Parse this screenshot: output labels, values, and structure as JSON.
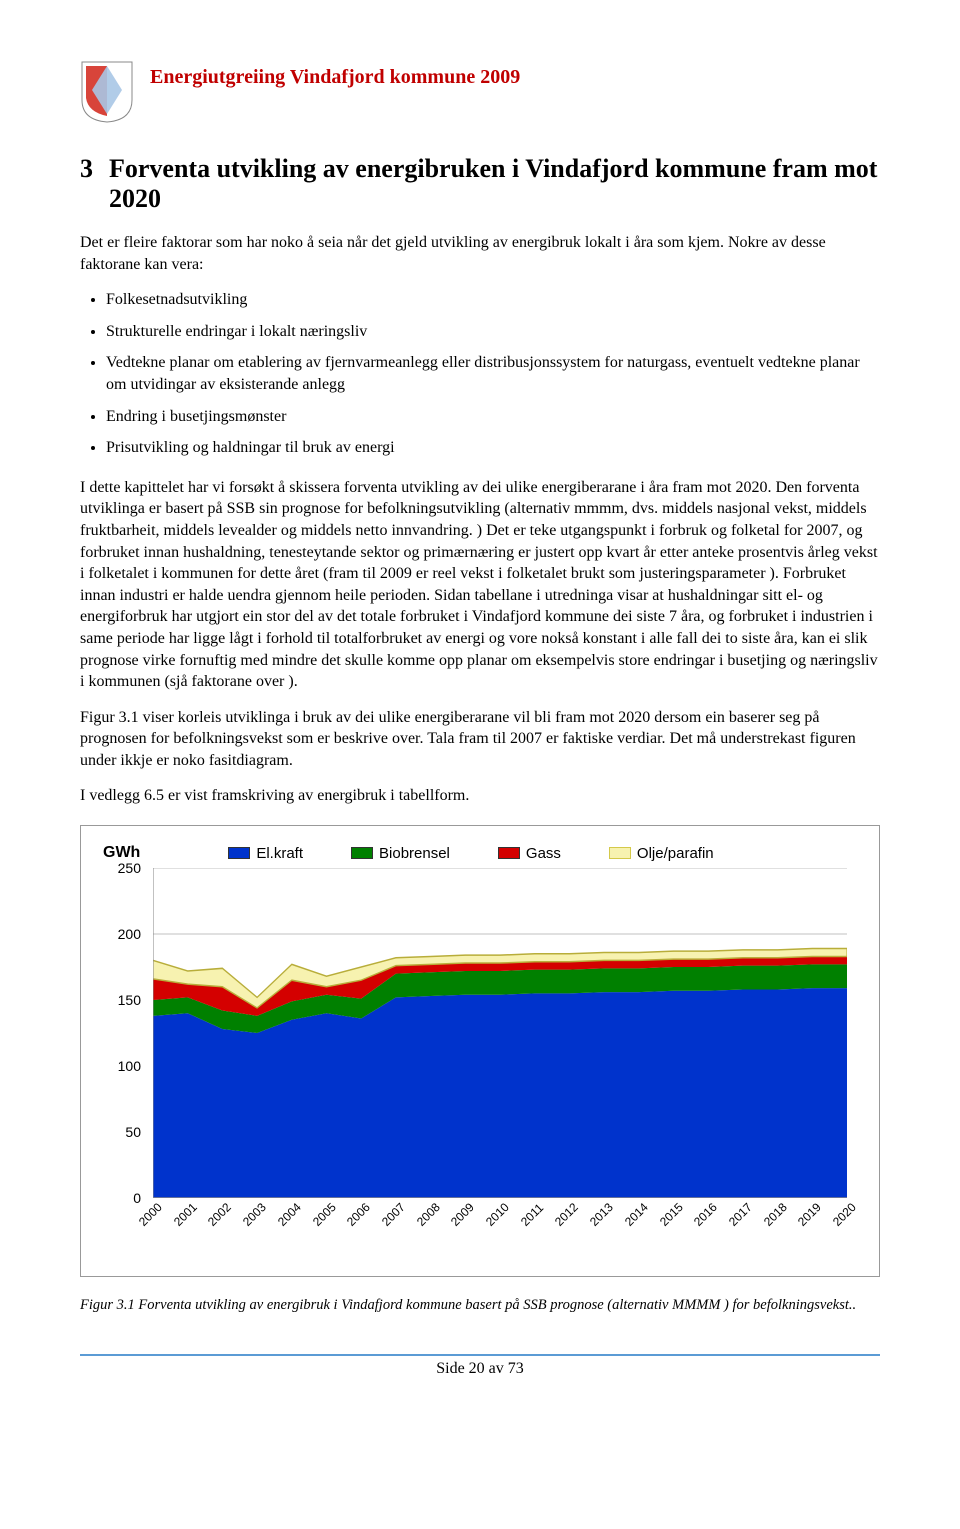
{
  "header": {
    "doc_title": "Energiutgreiing Vindafjord kommune 2009"
  },
  "section": {
    "number": "3",
    "title_line1": "Forventa utvikling av energibruken i Vindafjord kommune fram mot",
    "title_line2": "2020"
  },
  "intro": "Det er fleire faktorar som har noko å seia når det gjeld utvikling av energibruk lokalt i åra som kjem. Nokre av desse faktorane kan vera:",
  "bullets": [
    "Folkesetnadsutvikling",
    "Strukturelle endringar i lokalt næringsliv",
    "Vedtekne planar om etablering av fjernvarmeanlegg eller distribusjonssystem for naturgass, eventuelt vedtekne planar om utvidingar av eksisterande anlegg",
    "Endring i busetjingsmønster",
    "Prisutvikling og haldningar til bruk av energi"
  ],
  "p1": "I dette kapittelet har vi forsøkt å skissera forventa utvikling av dei ulike energiberarane i åra fram mot 2020. Den forventa utviklinga er basert på SSB sin prognose for befolkningsutvikling (alternativ mmmm, dvs. middels nasjonal vekst, middels fruktbarheit, middels levealder og middels netto innvandring. ) Det er teke utgangspunkt i forbruk og folketal for 2007, og forbruket innan hushaldning, tenesteytande sektor og primærnæring er justert opp kvart år etter anteke prosentvis årleg vekst i folketalet i kommunen for dette året (fram til 2009 er reel vekst i folketalet brukt som justeringsparameter ). Forbruket innan industri er halde uendra gjennom heile perioden. Sidan tabellane i utredninga visar at hushaldningar sitt el- og energiforbruk har utgjort ein stor del av det totale forbruket i Vindafjord kommune dei siste 7 åra, og forbruket i industrien i same periode har ligge lågt i forhold til totalforbruket av energi og vore nokså konstant i alle fall dei to siste åra, kan ei slik prognose virke fornuftig med mindre det skulle komme opp planar om eksempelvis store endringar i busetjing og næringsliv i kommunen (sjå faktorane over ).",
  "p2": "Figur 3.1 viser korleis utviklinga i bruk av dei ulike energiberarane vil bli fram mot 2020 dersom ein baserer seg på prognosen for befolkningsvekst som er beskrive over. Tala fram til 2007 er faktiske verdiar. Det må understrekast figuren under ikkje er noko fasitdiagram.",
  "p3": "I vedlegg 6.5 er vist framskriving av energibruk i tabellform.",
  "chart": {
    "type": "stacked-area",
    "unit_label": "GWh",
    "ylim": [
      0,
      250
    ],
    "ytick_step": 50,
    "yticks": [
      0,
      50,
      100,
      150,
      200,
      250
    ],
    "background_color": "#ffffff",
    "grid_color": "#c0c0c0",
    "years": [
      "2000",
      "2001",
      "2002",
      "2003",
      "2004",
      "2005",
      "2006",
      "2007",
      "2008",
      "2009",
      "2010",
      "2011",
      "2012",
      "2013",
      "2014",
      "2015",
      "2016",
      "2017",
      "2018",
      "2019",
      "2020"
    ],
    "legend": [
      {
        "label": "El.kraft",
        "color": "#0033cc"
      },
      {
        "label": "Biobrensel",
        "color": "#008000"
      },
      {
        "label": "Gass",
        "color": "#d40000"
      },
      {
        "label": "Olje/parafin",
        "color": "#f7f2b0",
        "border": "#d4c94a"
      }
    ],
    "series": {
      "elkraft": [
        138,
        140,
        128,
        125,
        135,
        140,
        136,
        152,
        153,
        154,
        154,
        155,
        155,
        156,
        156,
        157,
        157,
        158,
        158,
        159,
        159
      ],
      "biobrensel": [
        12,
        12,
        14,
        13,
        14,
        14,
        15,
        18,
        18,
        18,
        18,
        18,
        18,
        18,
        18,
        18,
        18,
        18,
        18,
        18,
        18
      ],
      "gass": [
        16,
        10,
        18,
        6,
        16,
        6,
        14,
        6,
        6,
        6,
        6,
        6,
        6,
        6,
        6,
        6,
        6,
        6,
        6,
        6,
        6
      ],
      "olje": [
        14,
        10,
        14,
        8,
        12,
        8,
        10,
        6,
        6,
        6,
        6,
        6,
        6,
        6,
        6,
        6,
        6,
        6,
        6,
        6,
        6
      ]
    },
    "colors": {
      "elkraft": "#0033cc",
      "biobrensel": "#008000",
      "gass": "#d40000",
      "olje": "#f7f2b0"
    }
  },
  "caption": "Figur 3.1 Forventa utvikling av energibruk i Vindafjord  kommune basert på SSB prognose (alternativ MMMM ) for befolkningsvekst..",
  "footer": "Side 20 av 73"
}
